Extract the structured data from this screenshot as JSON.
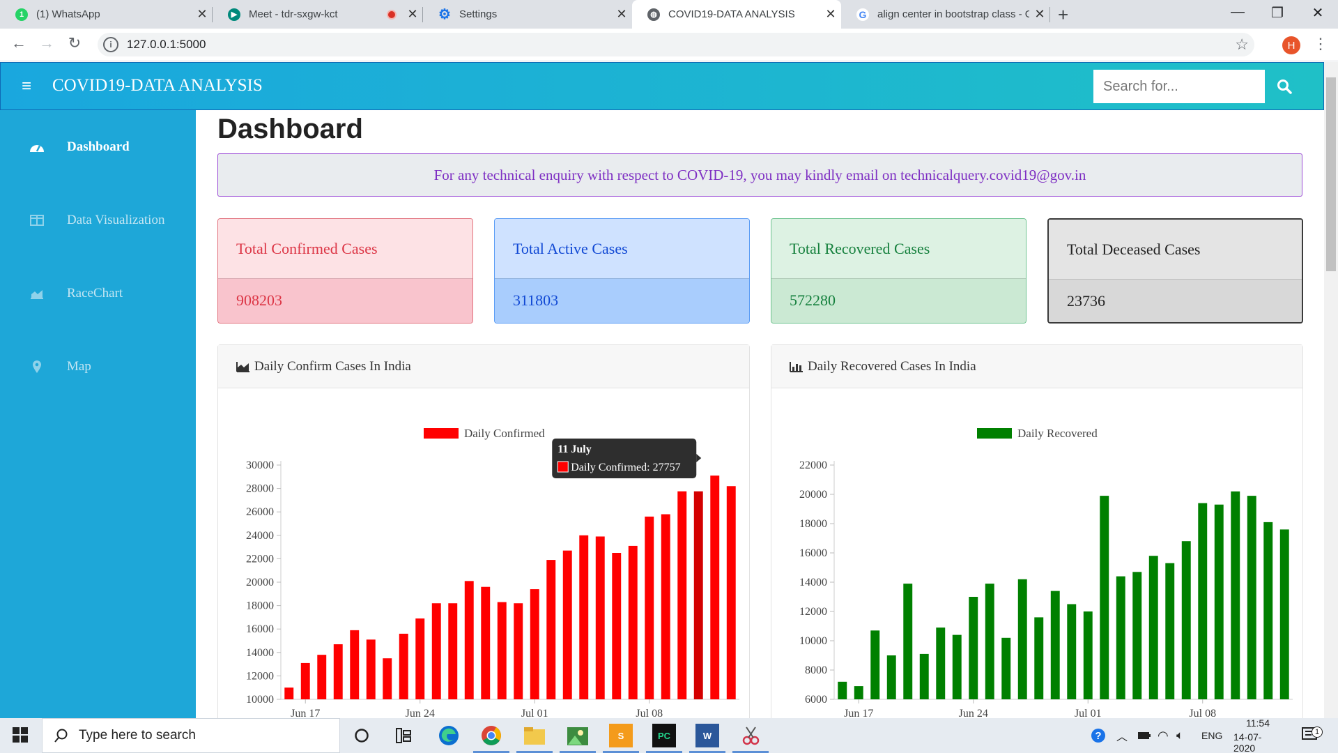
{
  "browser": {
    "tabs": [
      {
        "title": "(1) WhatsApp",
        "icon": "whatsapp-icon"
      },
      {
        "title": "Meet - tdr-sxgw-kct",
        "icon": "meet-icon"
      },
      {
        "title": "Settings",
        "icon": "gear-icon"
      },
      {
        "title": "COVID19-DATA ANALYSIS",
        "icon": "globe-icon"
      },
      {
        "title": "align center in bootstrap class - G",
        "icon": "google-icon"
      }
    ],
    "url": "127.0.0.1:5000",
    "profile_initial": "H"
  },
  "app": {
    "brand": "COVID19-DATA ANALYSIS",
    "search_placeholder": "Search for...",
    "sidebar": [
      {
        "label": "Dashboard",
        "icon": "tachometer-icon"
      },
      {
        "label": "Data Visualization",
        "icon": "columns-icon"
      },
      {
        "label": "RaceChart",
        "icon": "area-chart-icon"
      },
      {
        "label": "Map",
        "icon": "map-marker-icon"
      }
    ],
    "page_title": "Dashboard",
    "notice": "For any technical enquiry with respect to COVID-19, you may kindly email on technicalquery.covid19@gov.in",
    "stats": [
      {
        "label": "Total Confirmed Cases",
        "value": "908203",
        "color": "#dc3545"
      },
      {
        "label": "Total Active Cases",
        "value": "311803",
        "color": "#0d6efd"
      },
      {
        "label": "Total Recovered Cases",
        "value": "572280",
        "color": "#198754"
      },
      {
        "label": "Total Deceased Cases",
        "value": "23736",
        "color": "#212529"
      }
    ],
    "cards": [
      {
        "title": "Daily Confirm Cases In India",
        "icon": "area-chart-icon"
      },
      {
        "title": "Daily Recovered Cases In India",
        "icon": "bar-chart-icon"
      }
    ]
  },
  "chart_data": [
    {
      "type": "bar",
      "legend": "Daily Confirmed",
      "color": "#ff0000",
      "x_ticks": [
        "Jun 17",
        "Jun 24",
        "Jul 01",
        "Jul 08"
      ],
      "x_dates": [
        "Jun 16",
        "Jun 17",
        "Jun 18",
        "Jun 19",
        "Jun 20",
        "Jun 21",
        "Jun 22",
        "Jun 23",
        "Jun 24",
        "Jun 25",
        "Jun 26",
        "Jun 27",
        "Jun 28",
        "Jun 29",
        "Jun 30",
        "Jul 01",
        "Jul 02",
        "Jul 03",
        "Jul 04",
        "Jul 05",
        "Jul 06",
        "Jul 07",
        "Jul 08",
        "Jul 09",
        "Jul 10",
        "Jul 11",
        "Jul 12",
        "Jul 13"
      ],
      "values": [
        11000,
        13100,
        13800,
        14700,
        15900,
        15100,
        13500,
        15600,
        16900,
        18200,
        18200,
        20100,
        19600,
        18300,
        18200,
        19400,
        21900,
        22700,
        24000,
        23900,
        22500,
        23100,
        25600,
        25800,
        27757,
        27757,
        29100,
        28200
      ],
      "ylim": [
        10000,
        30000
      ],
      "y_ticks": [
        10000,
        12000,
        14000,
        16000,
        18000,
        20000,
        22000,
        24000,
        26000,
        28000,
        30000
      ],
      "tooltip": {
        "title": "11 July",
        "label": "Daily Confirmed: 27757",
        "index": 25
      }
    },
    {
      "type": "bar",
      "legend": "Daily Recovered",
      "color": "#008000",
      "x_ticks": [
        "Jun 17",
        "Jun 24",
        "Jul 01",
        "Jul 08"
      ],
      "x_dates": [
        "Jun 16",
        "Jun 17",
        "Jun 18",
        "Jun 19",
        "Jun 20",
        "Jun 21",
        "Jun 22",
        "Jun 23",
        "Jun 24",
        "Jun 25",
        "Jun 26",
        "Jun 27",
        "Jun 28",
        "Jun 29",
        "Jun 30",
        "Jul 01",
        "Jul 02",
        "Jul 03",
        "Jul 04",
        "Jul 05",
        "Jul 06",
        "Jul 07",
        "Jul 08",
        "Jul 09",
        "Jul 10",
        "Jul 11",
        "Jul 12",
        "Jul 13"
      ],
      "values": [
        7200,
        6900,
        10700,
        9000,
        13900,
        9100,
        10900,
        10400,
        13000,
        13900,
        10200,
        14200,
        11600,
        13400,
        12500,
        12000,
        19900,
        14400,
        14700,
        15800,
        15300,
        16800,
        19400,
        19300,
        20200,
        19900,
        18100,
        17600
      ],
      "ylim": [
        6000,
        22000
      ],
      "y_ticks": [
        6000,
        8000,
        10000,
        12000,
        14000,
        16000,
        18000,
        20000,
        22000
      ]
    }
  ],
  "taskbar": {
    "search_placeholder": "Type here to search",
    "lang": "ENG",
    "time": "11:54",
    "date": "14-07-2020",
    "notif_count": "1"
  }
}
